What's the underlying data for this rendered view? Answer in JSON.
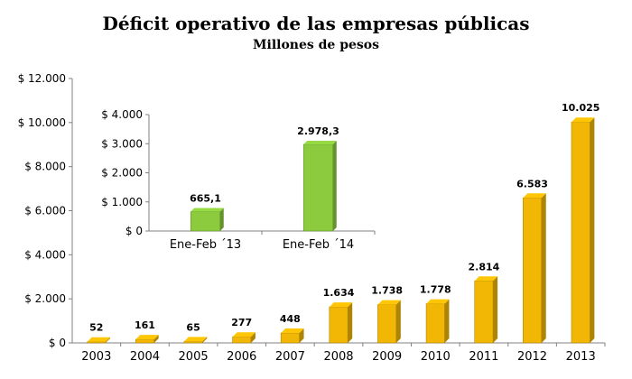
{
  "chart_data": [
    {
      "type": "bar",
      "title": "Déficit operativo de las empresas públicas",
      "subtitle": "Millones de pesos",
      "categories": [
        "2003",
        "2004",
        "2005",
        "2006",
        "2007",
        "2008",
        "2009",
        "2010",
        "2011",
        "2012",
        "2013"
      ],
      "values": [
        52,
        161,
        65,
        277,
        448,
        1634,
        1738,
        1778,
        2814,
        6583,
        10025
      ],
      "data_labels": [
        "52",
        "161",
        "65",
        "277",
        "448",
        "1.634",
        "1.738",
        "1.778",
        "2.814",
        "6.583",
        "10.025"
      ],
      "ylim": [
        0,
        12000
      ],
      "yticks": [
        0,
        2000,
        4000,
        6000,
        8000,
        10000,
        12000
      ],
      "ytick_labels": [
        "$ 0",
        "$ 2.000",
        "$ 4.000",
        "$ 6.000",
        "$ 8.000",
        "$ 10.000",
        "$ 12.000"
      ],
      "bar_color": "#F2B705",
      "grid": false
    },
    {
      "type": "bar",
      "categories": [
        "Ene-Feb ´13",
        "Ene-Feb ´14"
      ],
      "values": [
        665.1,
        2978.3
      ],
      "data_labels": [
        "665,1",
        "2.978,3"
      ],
      "ylim": [
        0,
        4000
      ],
      "yticks": [
        0,
        1000,
        2000,
        3000,
        4000
      ],
      "ytick_labels": [
        "$ 0",
        "$ 1.000",
        "$ 2.000",
        "$ 3.000",
        "$ 4.000"
      ],
      "bar_color": "#8CCB3E",
      "grid": false
    }
  ]
}
